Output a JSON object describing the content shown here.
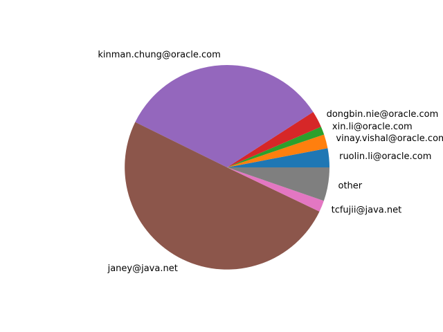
{
  "chart_data": {
    "type": "pie",
    "start_angle_deg": 0,
    "direction": "counterclockwise",
    "slices": [
      {
        "label": "ruolin.li@oracle.com",
        "value": 3.0,
        "color": "#1f77b4"
      },
      {
        "label": "vinay.vishal@oracle.com",
        "value": 2.2,
        "color": "#ff7f0e"
      },
      {
        "label": "xin.li@oracle.com",
        "value": 1.3,
        "color": "#2ca02c"
      },
      {
        "label": "dongbin.nie@oracle.com",
        "value": 2.6,
        "color": "#d62728"
      },
      {
        "label": "kinman.chung@oracle.com",
        "value": 33.6,
        "color": "#9467bd"
      },
      {
        "label": "janey@java.net",
        "value": 50.2,
        "color": "#8c564b"
      },
      {
        "label": "tcfujii@java.net",
        "value": 1.8,
        "color": "#e377c2"
      },
      {
        "label": "other",
        "value": 5.3,
        "color": "#7f7f7f"
      }
    ]
  }
}
